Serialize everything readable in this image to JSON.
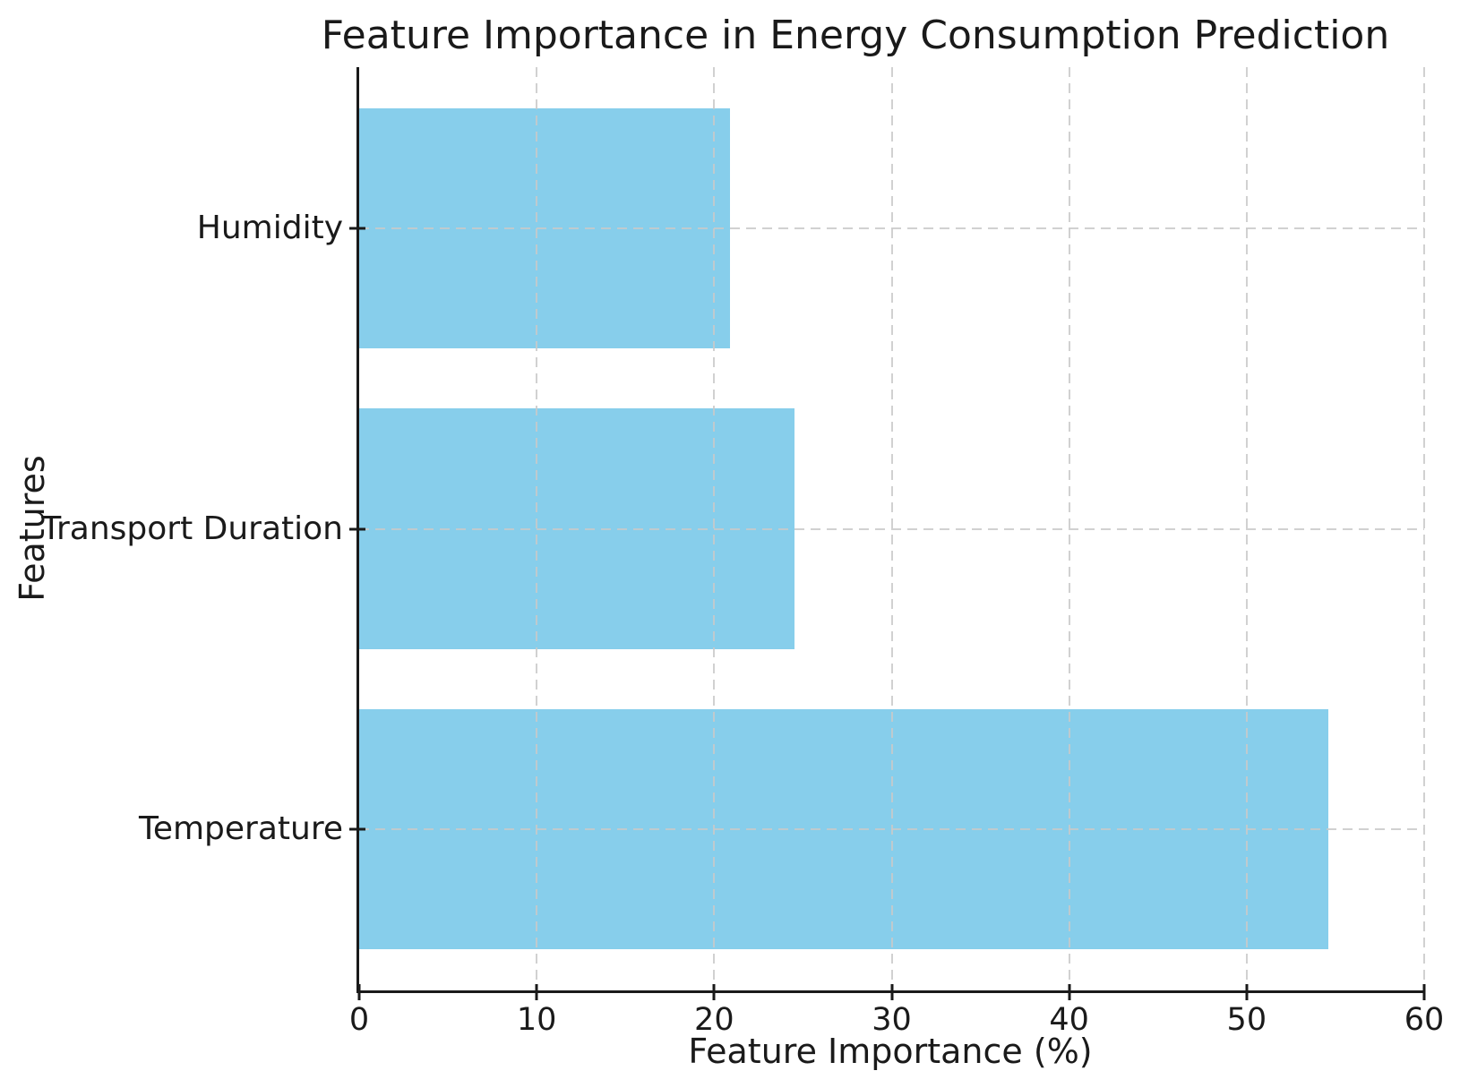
{
  "chart_data": {
    "type": "bar",
    "orientation": "horizontal",
    "title": "Feature Importance in Energy Consumption Prediction",
    "xlabel": "Feature Importance (%)",
    "ylabel": "Features",
    "categories": [
      "Humidity",
      "Transport Duration",
      "Temperature"
    ],
    "category_order": "top-to-bottom",
    "values": [
      20.9,
      24.5,
      54.6
    ],
    "xlim": [
      0,
      60
    ],
    "xticks": [
      0,
      10,
      20,
      30,
      40,
      50,
      60
    ],
    "grid": "dashed, both axes, drawn over bars",
    "legend": "none",
    "bar_color": "#87CEEB",
    "axis_color": "#1a1a1a",
    "grid_color": "rgba(201,201,201,0.85)",
    "background_color": "#ffffff"
  }
}
